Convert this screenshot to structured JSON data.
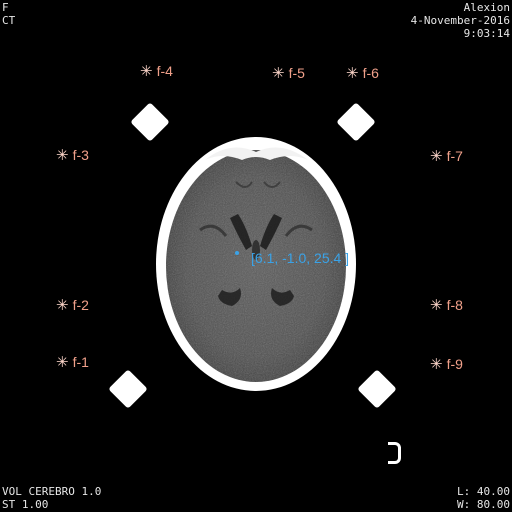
{
  "overlay": {
    "top_left": {
      "line1": "F",
      "line2": "CT"
    },
    "top_right": {
      "name": "Alexion",
      "date": "4-November-2016",
      "time": "9:03:14"
    },
    "bottom_left": {
      "series": "VOL CEREBRO 1.0",
      "slice_thickness": "ST 1.00"
    },
    "bottom_right": {
      "level": "L: 40.00",
      "width": "W: 80.00"
    }
  },
  "fiducials": {
    "f1": "f-1",
    "f2": "f-2",
    "f3": "f-3",
    "f4": "f-4",
    "f5": "f-5",
    "f6": "f-6",
    "f7": "f-7",
    "f8": "f-8",
    "f9": "f-9"
  },
  "cursor_coordinate": "[6.1, -1.0, 25.4 ]",
  "colors": {
    "background": "#000000",
    "fiducial": "#f0a08a",
    "coordinate": "#3aa3e8",
    "overlay_text": "#e6e6e6"
  }
}
